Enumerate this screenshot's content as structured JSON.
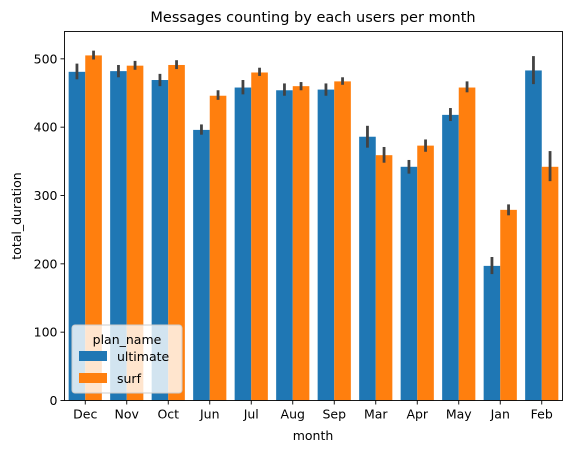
{
  "chart_data": {
    "type": "bar",
    "title": "Messages counting by each users per month",
    "xlabel": "month",
    "ylabel": "total_duration",
    "categories": [
      "Dec",
      "Nov",
      "Oct",
      "Jun",
      "Jul",
      "Aug",
      "Sep",
      "Mar",
      "Apr",
      "May",
      "Jan",
      "Feb"
    ],
    "ylim": [
      0,
      540
    ],
    "yticks": [
      0,
      100,
      200,
      300,
      400,
      500
    ],
    "grid": false,
    "legend": {
      "title": "plan_name",
      "placement": "lower-left"
    },
    "series": [
      {
        "name": "ultimate",
        "color": "#1f77b4",
        "values": [
          481,
          482,
          469,
          396,
          458,
          454,
          455,
          386,
          342,
          418,
          197,
          483
        ],
        "error_low": [
          470,
          473,
          460,
          389,
          448,
          446,
          446,
          370,
          332,
          409,
          185,
          463
        ],
        "error_high": [
          493,
          491,
          478,
          404,
          469,
          464,
          464,
          402,
          352,
          428,
          210,
          504
        ]
      },
      {
        "name": "surf",
        "color": "#ff7f0e",
        "values": [
          505,
          490,
          491,
          446,
          480,
          460,
          467,
          359,
          373,
          458,
          279,
          342
        ],
        "error_low": [
          499,
          484,
          485,
          440,
          475,
          454,
          462,
          348,
          364,
          451,
          271,
          321
        ],
        "error_high": [
          512,
          497,
          498,
          454,
          487,
          466,
          473,
          371,
          382,
          467,
          287,
          365
        ]
      }
    ]
  }
}
